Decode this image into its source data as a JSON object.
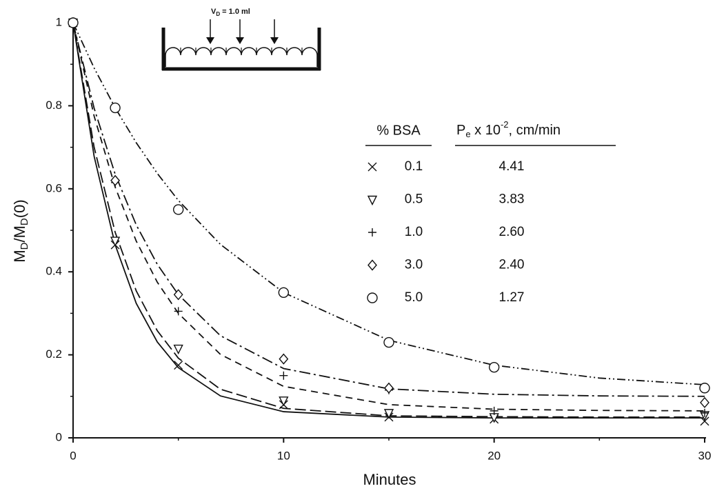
{
  "chart_data": {
    "type": "scatter",
    "xlabel": "Minutes",
    "ylabel": [
      "M",
      "D",
      "/M",
      "D",
      "(0)"
    ],
    "inset_label": [
      "V",
      "D",
      " = 1.0 ml"
    ],
    "xlim": [
      0,
      30
    ],
    "ylim": [
      0,
      1
    ],
    "xticks": [
      0,
      10,
      20,
      30
    ],
    "yticks": [
      0,
      0.2,
      0.4,
      0.6,
      0.8,
      1
    ],
    "xminor": [
      5,
      15,
      25
    ],
    "yminor": [
      0.1,
      0.3,
      0.5,
      0.7,
      0.9
    ],
    "legend_header": {
      "name": "% BSA",
      "pe": [
        "P",
        "e",
        " x 10",
        "-2",
        ", cm/min"
      ]
    },
    "series": [
      {
        "name": "0.1",
        "pe": "4.41",
        "marker": "x",
        "dash": "none",
        "x": [
          0,
          2,
          5,
          10,
          15,
          20,
          30
        ],
        "values": [
          1,
          0.465,
          0.175,
          0.08,
          0.05,
          0.045,
          0.04
        ],
        "fit": {
          "x": [
            0,
            1,
            2,
            3,
            4,
            5,
            7,
            10,
            15,
            20,
            25,
            30
          ],
          "y": [
            1,
            0.678,
            0.465,
            0.324,
            0.231,
            0.169,
            0.101,
            0.063,
            0.05,
            0.048,
            0.048,
            0.048
          ]
        }
      },
      {
        "name": "0.5",
        "pe": "3.83",
        "marker": "triangle",
        "dash": "16 6",
        "x": [
          0,
          2,
          5,
          10,
          15,
          20,
          30
        ],
        "values": [
          1,
          0.475,
          0.215,
          0.09,
          0.06,
          0.05,
          0.055
        ],
        "fit": {
          "x": [
            0,
            1,
            2,
            3,
            4,
            5,
            7,
            10,
            15,
            20,
            25,
            30
          ],
          "y": [
            1,
            0.7,
            0.495,
            0.354,
            0.258,
            0.192,
            0.117,
            0.071,
            0.053,
            0.051,
            0.05,
            0.05
          ]
        }
      },
      {
        "name": "1.0",
        "pe": "2.60",
        "marker": "plus",
        "dash": "10 7",
        "x": [
          0,
          2,
          5,
          10,
          15,
          20,
          30
        ],
        "values": [
          1,
          0.615,
          0.305,
          0.15,
          0.115,
          0.065,
          0.06
        ],
        "fit": {
          "x": [
            0,
            1,
            2,
            3,
            4,
            5,
            7,
            10,
            15,
            20,
            25,
            30
          ],
          "y": [
            1,
            0.775,
            0.604,
            0.474,
            0.375,
            0.3,
            0.201,
            0.124,
            0.08,
            0.069,
            0.066,
            0.065
          ]
        }
      },
      {
        "name": "3.0",
        "pe": "2.40",
        "marker": "diamond",
        "dash": "16 5 3 5",
        "x": [
          0,
          2,
          5,
          10,
          15,
          30
        ],
        "values": [
          1,
          0.62,
          0.345,
          0.19,
          0.12,
          0.085
        ],
        "fit": {
          "x": [
            0,
            1,
            2,
            3,
            4,
            5,
            7,
            10,
            15,
            20,
            25,
            30
          ],
          "y": [
            1,
            0.794,
            0.635,
            0.513,
            0.418,
            0.345,
            0.246,
            0.167,
            0.118,
            0.105,
            0.101,
            0.1
          ]
        }
      },
      {
        "name": "5.0",
        "pe": "1.27",
        "marker": "circle",
        "dash": "12 4 2 4 2 4",
        "x": [
          0,
          2,
          5,
          10,
          15,
          20,
          30
        ],
        "values": [
          1,
          0.795,
          0.55,
          0.35,
          0.23,
          0.17,
          0.12
        ],
        "fit": {
          "x": [
            0,
            1,
            2,
            3,
            4,
            5,
            7,
            10,
            15,
            20,
            25,
            30
          ],
          "y": [
            1,
            0.891,
            0.795,
            0.711,
            0.637,
            0.572,
            0.466,
            0.35,
            0.235,
            0.175,
            0.144,
            0.128
          ]
        }
      }
    ]
  }
}
